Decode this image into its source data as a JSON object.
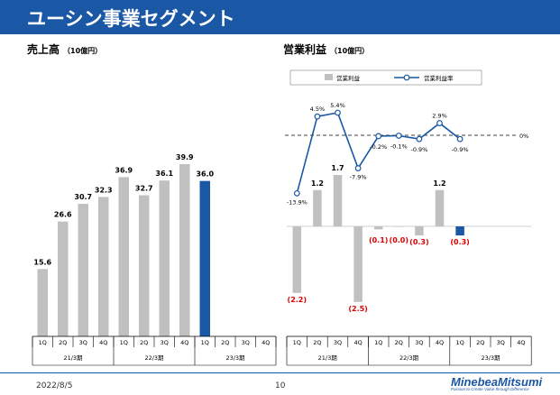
{
  "title": "ユーシン事業セグメント",
  "colors": {
    "title_bg": "#1a57a4",
    "bar_gray": "#c0c0c0",
    "bar_highlight": "#1a57a4",
    "negative_label": "#e00000",
    "line": "#1a57a4"
  },
  "left_panel": {
    "title": "売上高",
    "unit": "（10億円）"
  },
  "right_panel": {
    "title": "営業利益",
    "unit": "（10億円）",
    "legend_bar": "営業利益",
    "legend_line": "営業利益率",
    "zero_label": "0%"
  },
  "footer": {
    "date": "2022/8/5",
    "page": "10",
    "logo_main": "MinebeaMitsumi",
    "logo_sub": "Passion to Create Value through Difference"
  },
  "chart_data": [
    {
      "type": "bar",
      "categories": [
        "1Q",
        "2Q",
        "3Q",
        "4Q",
        "1Q",
        "2Q",
        "3Q",
        "4Q",
        "1Q",
        "2Q",
        "3Q",
        "4Q"
      ],
      "groups": [
        {
          "label": "21/3期",
          "span": 4
        },
        {
          "label": "22/3期",
          "span": 4
        },
        {
          "label": "23/3期",
          "span": 4
        }
      ],
      "values": [
        15.6,
        26.6,
        30.7,
        32.3,
        36.9,
        32.7,
        36.1,
        39.9,
        36.0,
        null,
        null,
        null
      ],
      "labels": [
        "15.6",
        "26.6",
        "30.7",
        "32.3",
        "36.9",
        "32.7",
        "36.1",
        "39.9",
        "36.0",
        "",
        "",
        ""
      ],
      "highlight_index": 8,
      "ylim": [
        0,
        45
      ]
    },
    {
      "type": "bar+line",
      "categories": [
        "1Q",
        "2Q",
        "3Q",
        "4Q",
        "1Q",
        "2Q",
        "3Q",
        "4Q",
        "1Q",
        "2Q",
        "3Q",
        "4Q"
      ],
      "groups": [
        {
          "label": "21/3期",
          "span": 4
        },
        {
          "label": "22/3期",
          "span": 4
        },
        {
          "label": "23/3期",
          "span": 4
        }
      ],
      "series": [
        {
          "name": "営業利益",
          "kind": "bar",
          "values": [
            -2.2,
            1.2,
            1.7,
            -2.5,
            -0.1,
            0.0,
            -0.3,
            1.2,
            -0.3,
            null,
            null,
            null
          ],
          "labels": [
            "(2.2)",
            "1.2",
            "1.7",
            "(2.5)",
            "(0.1)",
            "(0.0)",
            "(0.3)",
            "1.2",
            "(0.3)",
            "",
            "",
            ""
          ]
        },
        {
          "name": "営業利益率",
          "kind": "line",
          "values": [
            -13.9,
            4.5,
            5.4,
            -7.9,
            -0.2,
            -0.1,
            -0.9,
            2.9,
            -0.9,
            null,
            null,
            null
          ],
          "labels": [
            "-13.9%",
            "4.5%",
            "5.4%",
            "-7.9%",
            "-0.2%",
            "-0.1%",
            "-0.9%",
            "2.9%",
            "-0.9%",
            "",
            "",
            ""
          ]
        }
      ],
      "highlight_index": 8,
      "ylim_bar": [
        -3,
        2.2
      ],
      "ylim_line": [
        -16,
        7
      ]
    }
  ]
}
